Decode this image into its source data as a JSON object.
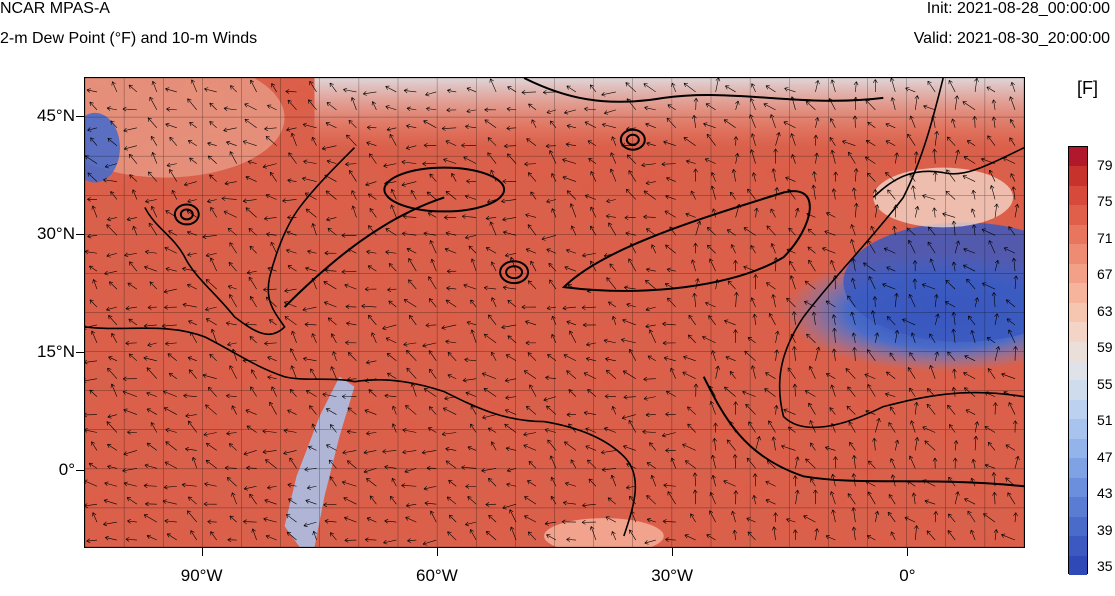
{
  "header": {
    "title": "NCAR MPAS-A",
    "subtitle": "2-m Dew Point (°F) and 10-m Winds",
    "init": "Init: 2021-08-28_00:00:00",
    "valid": "Valid: 2021-08-30_20:00:00"
  },
  "map": {
    "lat_labels": [
      {
        "text": "45°N",
        "lat": 45
      },
      {
        "text": "30°N",
        "lat": 30
      },
      {
        "text": "15°N",
        "lat": 15
      },
      {
        "text": "0°",
        "lat": 0
      }
    ],
    "lon_labels": [
      {
        "text": "90°W",
        "lon": -90
      },
      {
        "text": "60°W",
        "lon": -60
      },
      {
        "text": "30°W",
        "lon": -30
      },
      {
        "text": "0°",
        "lon": 0
      }
    ],
    "lon_range": [
      -105,
      15
    ],
    "lat_range": [
      -10,
      50
    ],
    "grid_spacing_deg": 5
  },
  "colorbar": {
    "title": "[F]",
    "labels": [
      "79",
      "75",
      "71",
      "67",
      "63",
      "59",
      "55",
      "51",
      "47",
      "43",
      "39",
      "35"
    ],
    "colors": [
      "#b2182b",
      "#c7322d",
      "#d6493b",
      "#e05f4b",
      "#e8765f",
      "#ee8b73",
      "#f3a088",
      "#f6b49d",
      "#f7c6b1",
      "#f3d4c7",
      "#ebdfd9",
      "#dfe2e8",
      "#cfdcee",
      "#bcd1ef",
      "#a8c4ee",
      "#93b4ea",
      "#7fa2e4",
      "#6b8fdc",
      "#5a7dd3",
      "#4a6bc9",
      "#3b59c0",
      "#2f49b6"
    ]
  }
}
